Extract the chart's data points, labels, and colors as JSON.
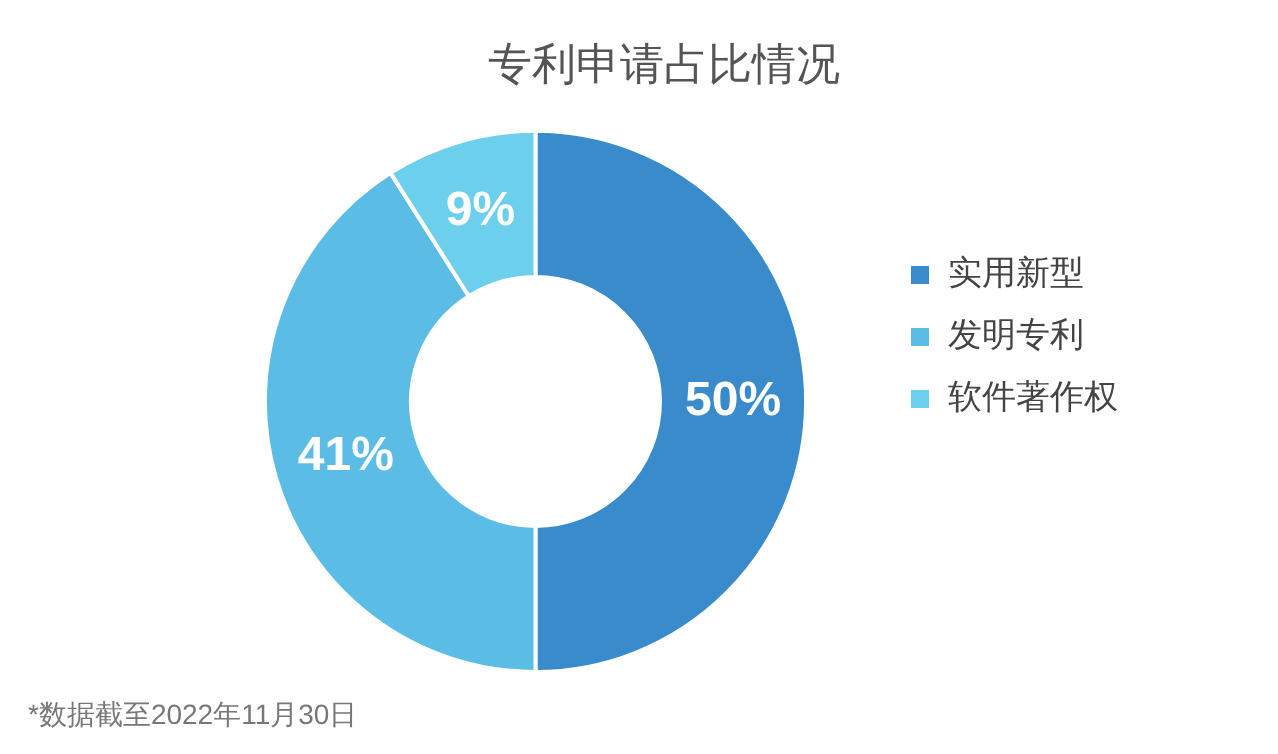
{
  "chart_data": {
    "type": "donut",
    "title": "专利申请占比情况",
    "categories": [
      "实用新型",
      "发明专利",
      "软件著作权"
    ],
    "values": [
      50,
      41,
      9
    ],
    "colors": [
      "#3a8bcb",
      "#5bbde6",
      "#6ccfec"
    ],
    "value_labels": [
      "50%",
      "41%",
      "9%"
    ],
    "legend": "right",
    "annotations": [
      "*数据截至2022年11月30日"
    ]
  }
}
